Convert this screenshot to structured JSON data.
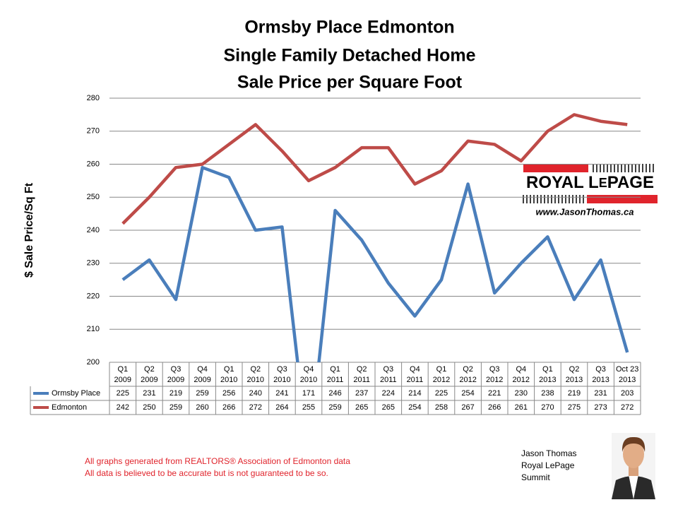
{
  "chart_data": {
    "type": "line",
    "title": [
      "Ormsby Place Edmonton",
      "Single Family Detached Home",
      "Sale Price per Square Foot"
    ],
    "y_label": "$ Sale Price/Sq Ft",
    "categories": [
      [
        "Q1",
        "2009"
      ],
      [
        "Q2",
        "2009"
      ],
      [
        "Q3",
        "2009"
      ],
      [
        "Q4",
        "2009"
      ],
      [
        "Q1",
        "2010"
      ],
      [
        "Q2",
        "2010"
      ],
      [
        "Q3",
        "2010"
      ],
      [
        "Q4",
        "2010"
      ],
      [
        "Q1",
        "2011"
      ],
      [
        "Q2",
        "2011"
      ],
      [
        "Q3",
        "2011"
      ],
      [
        "Q4",
        "2011"
      ],
      [
        "Q1",
        "2012"
      ],
      [
        "Q2",
        "2012"
      ],
      [
        "Q3",
        "2012"
      ],
      [
        "Q4",
        "2012"
      ],
      [
        "Q1",
        "2013"
      ],
      [
        "Q2",
        "2013"
      ],
      [
        "Q3",
        "2013"
      ],
      [
        "Oct 23",
        "2013"
      ]
    ],
    "series": [
      {
        "name": "Ormsby Place",
        "color": "#4a7ebb",
        "values": [
          225,
          231,
          219,
          259,
          256,
          240,
          241,
          171,
          246,
          237,
          224,
          214,
          225,
          254,
          221,
          230,
          238,
          219,
          231,
          203
        ]
      },
      {
        "name": "Edmonton",
        "color": "#be4b48",
        "values": [
          242,
          250,
          259,
          260,
          266,
          272,
          264,
          255,
          259,
          265,
          265,
          254,
          258,
          267,
          266,
          261,
          270,
          275,
          273,
          272
        ]
      }
    ],
    "ylim": [
      200,
      280
    ],
    "yticks": [
      200,
      210,
      220,
      230,
      240,
      250,
      260,
      270,
      280
    ],
    "grid": true,
    "data_table": true
  },
  "branding": {
    "logo_left": "ROYAL L",
    "logo_e": "E",
    "logo_right": "PAGE",
    "website": "www.JasonThomas.ca",
    "notes": [
      "All graphs generated from REALTORS® Association of Edmonton data",
      "All data is believed to be accurate but is not guaranteed to be so."
    ],
    "agent": [
      "Jason Thomas",
      "Royal LePage",
      "Summit"
    ]
  }
}
